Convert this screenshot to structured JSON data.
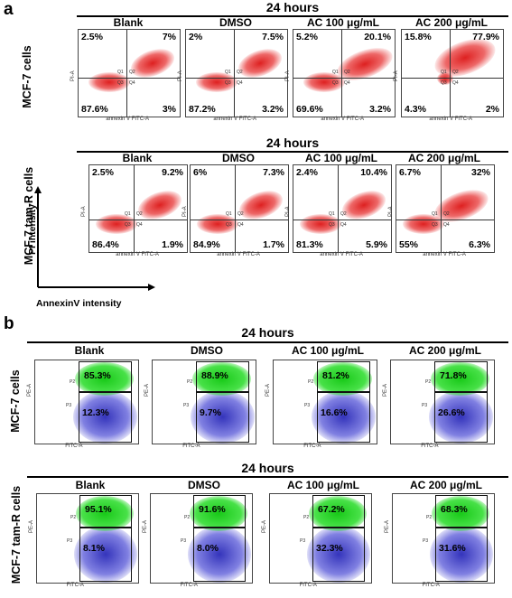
{
  "panel_a": {
    "letter": "a",
    "row1": {
      "time": "24 hours",
      "row_label": "MCF-7 cells",
      "columns": [
        {
          "label": "Blank",
          "ul": "2.5%",
          "ur": "7%",
          "ll": "87.6%",
          "lr": "3%"
        },
        {
          "label": "DMSO",
          "ul": "2%",
          "ur": "7.5%",
          "ll": "87.2%",
          "lr": "3.2%"
        },
        {
          "label": "AC 100 μg/mL",
          "ul": "5.2%",
          "ur": "20.1%",
          "ll": "69.6%",
          "lr": "3.2%"
        },
        {
          "label": "AC 200 μg/mL",
          "ul": "15.8%",
          "ur": "77.9%",
          "ll": "4.3%",
          "lr": "2%"
        }
      ]
    },
    "row2": {
      "time": "24 hours",
      "row_label": "MCF-7 tam-R cells",
      "columns": [
        {
          "label": "Blank",
          "ul": "2.5%",
          "ur": "9.2%",
          "ll": "86.4%",
          "lr": "1.9%"
        },
        {
          "label": "DMSO",
          "ul": "6%",
          "ur": "7.3%",
          "ll": "84.9%",
          "lr": "1.7%"
        },
        {
          "label": "AC 100 μg/mL",
          "ul": "2.4%",
          "ur": "10.4%",
          "ll": "81.3%",
          "lr": "5.9%"
        },
        {
          "label": "AC 200 μg/mL",
          "ul": "6.7%",
          "ur": "32%",
          "ll": "55%",
          "lr": "6.3%"
        }
      ]
    },
    "axis_key": {
      "y": "PI intensity",
      "x": "AnnexinV intensity"
    },
    "plot_axis_x": "annexin V FITC-A",
    "plot_axis_y": "PI-A",
    "quadrants": {
      "q1": "Q1",
      "q2": "Q2",
      "q3": "Q3",
      "q4": "Q4"
    }
  },
  "panel_b": {
    "letter": "b",
    "row1": {
      "time": "24 hours",
      "row_label": "MCF-7 cells",
      "columns": [
        {
          "label": "Blank",
          "top": "85.3%",
          "bottom": "12.3%"
        },
        {
          "label": "DMSO",
          "top": "88.9%",
          "bottom": "9.7%"
        },
        {
          "label": "AC 100 μg/mL",
          "top": "81.2%",
          "bottom": "16.6%"
        },
        {
          "label": "AC 200 μg/mL",
          "top": "71.8%",
          "bottom": "26.6%"
        }
      ]
    },
    "row2": {
      "time": "24 hours",
      "row_label": "MCF-7 tam-R cells",
      "columns": [
        {
          "label": "Blank",
          "top": "95.1%",
          "bottom": "8.1%"
        },
        {
          "label": "DMSO",
          "top": "91.6%",
          "bottom": "8.0%"
        },
        {
          "label": "AC 100 μg/mL",
          "top": "67.2%",
          "bottom": "32.3%"
        },
        {
          "label": "AC 200 μg/mL",
          "top": "68.3%",
          "bottom": "31.6%"
        }
      ]
    },
    "plot_axis_x": "FITC-A",
    "plot_axis_y": "PE-A",
    "gates": {
      "p2": "P2",
      "p3": "P3"
    }
  },
  "colors": {
    "apoptosis_dots": "#e01818",
    "green_gate": "#22cc22",
    "blue_gate": "#2a2ab8"
  }
}
